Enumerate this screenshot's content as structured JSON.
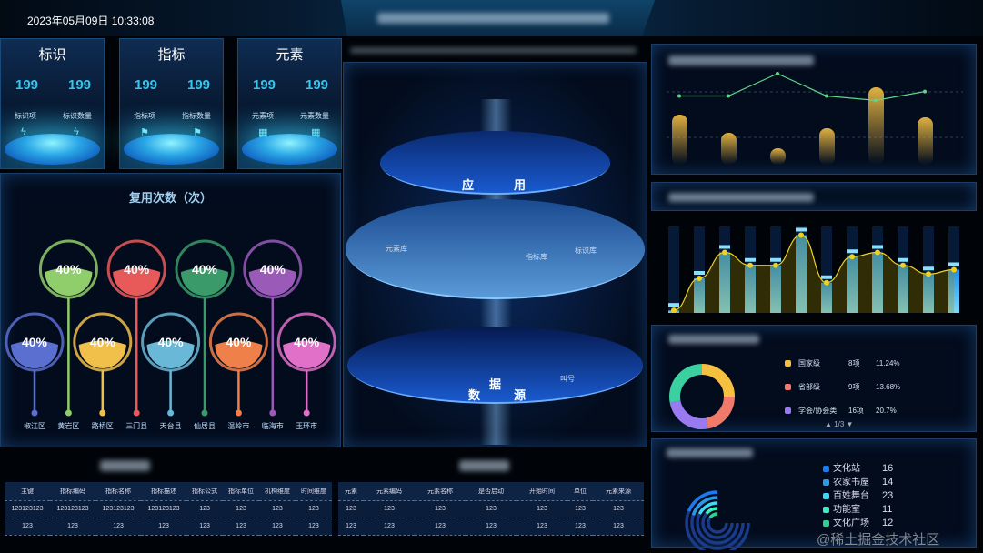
{
  "header": {
    "datetime": "2023年05月09日 10:33:08"
  },
  "cards": [
    {
      "title": "标识",
      "value1": "199",
      "value2": "199",
      "label1": "标识项",
      "label2": "标识数量",
      "icon": "lightning-icon",
      "glyph": "ϟ"
    },
    {
      "title": "指标",
      "value1": "199",
      "value2": "199",
      "label1": "指标项",
      "label2": "指标数量",
      "icon": "flag-icon",
      "glyph": "⚑"
    },
    {
      "title": "元素",
      "value1": "199",
      "value2": "199",
      "label1": "元素项",
      "label2": "元素数量",
      "icon": "grid-icon",
      "glyph": "▦"
    }
  ],
  "reuse": {
    "title": "复用次数（次）",
    "items": [
      {
        "name": "椒江区",
        "pct": "40%",
        "color": "#5b6fd0"
      },
      {
        "name": "黄岩区",
        "pct": "40%",
        "color": "#8fce6a"
      },
      {
        "name": "路桥区",
        "pct": "40%",
        "color": "#f0c04a"
      },
      {
        "name": "三门县",
        "pct": "40%",
        "color": "#e85a5a"
      },
      {
        "name": "天台县",
        "pct": "40%",
        "color": "#6ab8d8"
      },
      {
        "name": "仙居县",
        "pct": "40%",
        "color": "#3a9a6a"
      },
      {
        "name": "温岭市",
        "pct": "40%",
        "color": "#f0804a"
      },
      {
        "name": "临海市",
        "pct": "40%",
        "color": "#9a5ab8"
      },
      {
        "name": "玉环市",
        "pct": "40%",
        "color": "#e070c8"
      }
    ]
  },
  "center": {
    "top_layer": {
      "label_a": "应",
      "label_b": "用"
    },
    "mid_layer": {
      "items": [
        "元素库",
        "指标库",
        "标识库"
      ]
    },
    "bottom_layer": {
      "label_a": "数",
      "label_b": "据",
      "label_c": "源",
      "items": [
        "叫号"
      ]
    }
  },
  "table_left": {
    "headers": [
      "主键",
      "指标编码",
      "指标名称",
      "指标描述",
      "指标公式",
      "指标单位",
      "机构维度",
      "时间维度"
    ],
    "rows": [
      [
        "123123123",
        "123123123",
        "123123123",
        "123123123",
        "123",
        "123",
        "123",
        "123"
      ],
      [
        "123",
        "123",
        "123",
        "123",
        "123",
        "123",
        "123",
        "123"
      ]
    ]
  },
  "table_right": {
    "headers": [
      "元素",
      "元素编码",
      "元素名称",
      "是否启动",
      "开始时间",
      "单位",
      "元素来源"
    ],
    "rows": [
      [
        "123",
        "123",
        "123",
        "123",
        "123",
        "123",
        "123"
      ],
      [
        "123",
        "123",
        "123",
        "123",
        "123",
        "123",
        "123"
      ]
    ]
  },
  "chart_data": [
    {
      "type": "bar",
      "bar_values": [
        55,
        35,
        18,
        40,
        85,
        52
      ],
      "line_values": [
        75,
        75,
        100,
        75,
        70,
        80
      ],
      "bar_color": "#e0b040",
      "line_color": "#5ed68a",
      "grid": true
    },
    {
      "type": "bar",
      "values": [
        3,
        40,
        70,
        55,
        55,
        90,
        35,
        65,
        70,
        55,
        45,
        50
      ],
      "bar_color": "#2fa8f0",
      "line_color": "#f0d020",
      "grid": true
    }
  ],
  "levels": {
    "items": [
      {
        "name": "国家级",
        "count": "8项",
        "pct": "11.24%",
        "color": "#f5c040"
      },
      {
        "name": "省部级",
        "count": "9项",
        "pct": "13.68%",
        "color": "#f07a6a"
      },
      {
        "name": "学会/协会类",
        "count": "16项",
        "pct": "20.7%",
        "color": "#9a7af0"
      }
    ],
    "donut_colors": [
      "#f5c040",
      "#f07a6a",
      "#9a7af0",
      "#3ad0a0"
    ],
    "pager": "▲ 1/3 ▼"
  },
  "venues": {
    "items": [
      {
        "name": "文化站",
        "value": "16",
        "color": "#1a7af0"
      },
      {
        "name": "农家书屋",
        "value": "14",
        "color": "#2a9ae8"
      },
      {
        "name": "百姓舞台",
        "value": "23",
        "color": "#40d8f0"
      },
      {
        "name": "功能室",
        "value": "11",
        "color": "#3af0c0"
      },
      {
        "name": "文化广场",
        "value": "12",
        "color": "#30d090"
      }
    ]
  },
  "watermark": "@稀土掘金技术社区"
}
